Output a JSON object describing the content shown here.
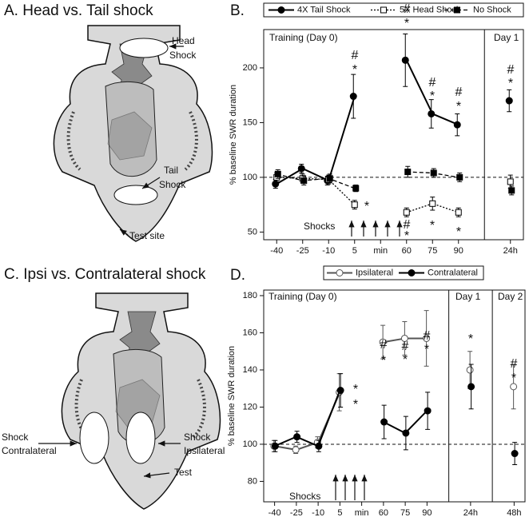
{
  "panels": {
    "a_title": "A. Head vs. Tail shock",
    "c_title": "C. Ipsi vs. Contralateral shock",
    "a_labels": {
      "head_1": "Head",
      "head_2": "Shock",
      "tail_1": "Tail",
      "tail_2": "Shock",
      "test": "Test site"
    },
    "c_labels": {
      "contra_1": "Shock",
      "contra_2": "Contralateral",
      "ipsi_1": "Shock",
      "ipsi_2": "Ipsilateral",
      "test": "Test"
    }
  },
  "chart_data": [
    {
      "type": "line",
      "title": "B.",
      "y_label": "% baseline SWR duration",
      "period_labels": [
        "Training (Day 0)",
        "Day 1"
      ],
      "stimulus_label": "Shocks",
      "categories": [
        "-40",
        "-25",
        "-10",
        "5",
        "min",
        "60",
        "75",
        "90",
        null,
        "24h"
      ],
      "ylim": [
        43,
        235
      ],
      "yticks": [
        50,
        100,
        150,
        200
      ],
      "reference_line": 100,
      "series": [
        {
          "name": "4X Tail Shock",
          "color": "#000000",
          "marker": "circle",
          "filled": true,
          "dash": "solid",
          "values": [
            94,
            108,
            97,
            174,
            null,
            207,
            158,
            148,
            null,
            170
          ],
          "errors": [
            4,
            4,
            4,
            20,
            null,
            24,
            13,
            10,
            null,
            10
          ]
        },
        {
          "name": "5X Head Shock",
          "color": "#000000",
          "marker": "square",
          "filled": false,
          "dash": "dotted",
          "values": [
            100,
            99,
            98,
            75,
            null,
            68,
            76,
            68,
            null,
            96
          ],
          "errors": [
            4,
            4,
            4,
            4,
            null,
            4,
            6,
            4,
            null,
            6
          ]
        },
        {
          "name": "No Shock",
          "color": "#000000",
          "marker": "square",
          "filled": true,
          "dash": "dashed",
          "values": [
            103,
            97,
            99,
            90,
            null,
            105,
            104,
            100,
            null,
            88
          ],
          "errors": [
            4,
            4,
            4,
            3,
            null,
            5,
            4,
            4,
            null,
            4
          ]
        }
      ],
      "annotations": [
        "#",
        "*",
        "*",
        "#",
        "*",
        "#",
        "*",
        "#",
        "*",
        "#",
        "*",
        "#",
        "*",
        "*",
        "*"
      ]
    },
    {
      "type": "line",
      "title": "D.",
      "y_label": "% baseline SWR duration",
      "period_labels": [
        "Training (Day 0)",
        "Day 1",
        "Day 2"
      ],
      "stimulus_label": "Shocks",
      "categories": [
        "-40",
        "-25",
        "-10",
        "5",
        "min",
        "60",
        "75",
        "90",
        null,
        "24h",
        null,
        "48h"
      ],
      "ylim": [
        69,
        183
      ],
      "yticks": [
        80,
        100,
        120,
        140,
        160,
        180
      ],
      "reference_line": 100,
      "series": [
        {
          "name": "Ipsilateral",
          "color": "#555555",
          "marker": "circle",
          "filled": false,
          "dash": "solid",
          "values": [
            99,
            97,
            101,
            128,
            null,
            155,
            157,
            157,
            null,
            140,
            null,
            131
          ],
          "errors": [
            3,
            2,
            3,
            10,
            null,
            9,
            9,
            15,
            null,
            10,
            null,
            12
          ]
        },
        {
          "name": "Contralateral",
          "color": "#000000",
          "marker": "circle",
          "filled": true,
          "dash": "solid",
          "values": [
            99,
            104,
            99,
            129,
            null,
            112,
            106,
            118,
            null,
            131,
            null,
            95
          ],
          "errors": [
            3,
            3,
            3,
            9,
            null,
            9,
            9,
            10,
            null,
            12,
            null,
            6
          ]
        }
      ],
      "annotations": [
        "*",
        "*",
        "#",
        "*",
        "#",
        "*",
        "#",
        "*",
        "*",
        "#",
        "*"
      ]
    }
  ]
}
